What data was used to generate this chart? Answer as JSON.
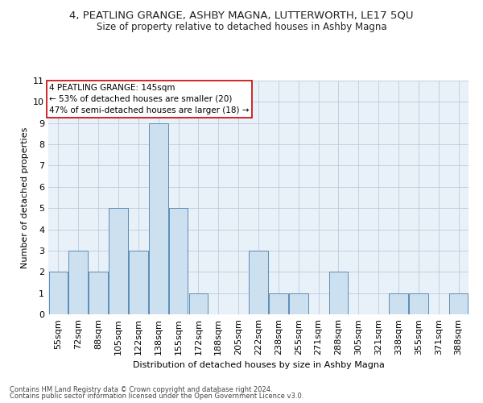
{
  "title": "4, PEATLING GRANGE, ASHBY MAGNA, LUTTERWORTH, LE17 5QU",
  "subtitle": "Size of property relative to detached houses in Ashby Magna",
  "xlabel": "Distribution of detached houses by size in Ashby Magna",
  "ylabel": "Number of detached properties",
  "footnote1": "Contains HM Land Registry data © Crown copyright and database right 2024.",
  "footnote2": "Contains public sector information licensed under the Open Government Licence v3.0.",
  "annotation_line1": "4 PEATLING GRANGE: 145sqm",
  "annotation_line2": "← 53% of detached houses are smaller (20)",
  "annotation_line3": "47% of semi-detached houses are larger (18) →",
  "bins": [
    "55sqm",
    "72sqm",
    "88sqm",
    "105sqm",
    "122sqm",
    "138sqm",
    "155sqm",
    "172sqm",
    "188sqm",
    "205sqm",
    "222sqm",
    "238sqm",
    "255sqm",
    "271sqm",
    "288sqm",
    "305sqm",
    "321sqm",
    "338sqm",
    "355sqm",
    "371sqm",
    "388sqm"
  ],
  "values": [
    2,
    3,
    2,
    5,
    3,
    9,
    5,
    1,
    0,
    0,
    3,
    1,
    1,
    0,
    2,
    0,
    0,
    1,
    1,
    0,
    1
  ],
  "highlight_index": 5,
  "bar_color": "#cce0f0",
  "bar_edge_color": "#5b8db8",
  "annotation_box_edge_color": "#cc0000",
  "background_color": "#ffffff",
  "plot_bg_color": "#e8f0f8",
  "grid_color": "#bbccdd",
  "ylim": [
    0,
    11
  ],
  "yticks": [
    0,
    1,
    2,
    3,
    4,
    5,
    6,
    7,
    8,
    9,
    10,
    11
  ],
  "title_fontsize": 9.5,
  "subtitle_fontsize": 8.5,
  "xlabel_fontsize": 8,
  "ylabel_fontsize": 8,
  "tick_fontsize": 8,
  "annotation_fontsize": 7.5,
  "footnote_fontsize": 6
}
